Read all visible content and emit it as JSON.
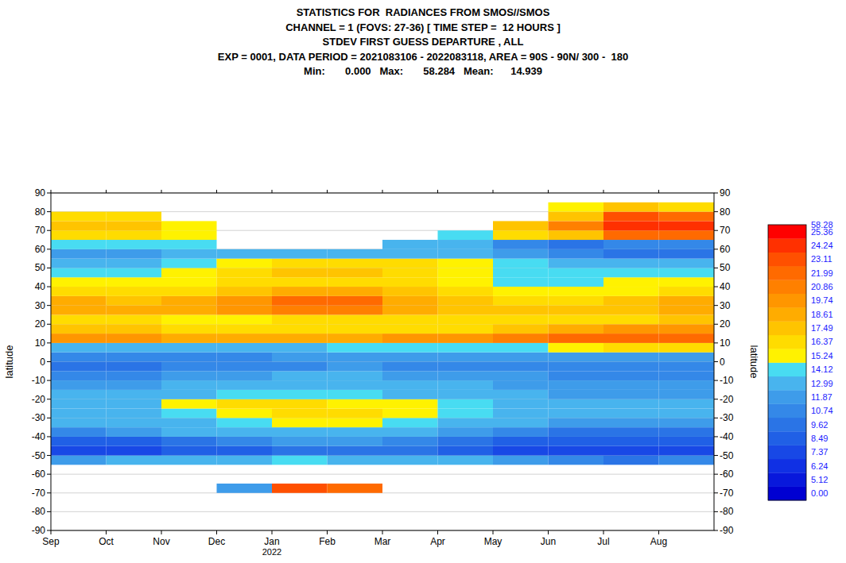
{
  "chart_data": {
    "type": "heatmap",
    "title": "STATISTICS FOR  RADIANCES FROM SMOS//SMOS",
    "subtitle": [
      "CHANNEL = 1 (FOVS: 27-36) [ TIME STEP =  12 HOURS ]",
      "STDEV FIRST GUESS DEPARTURE , ALL",
      "EXP = 0001, DATA PERIOD = 2021083106 - 2022083118, AREA = 90S - 90N/ 300 -  180",
      "Min:       0.000   Max:       58.284   Mean:      14.939"
    ],
    "ylabel": "latitude",
    "xlim": [
      "2021-09",
      "2022-09"
    ],
    "xticks": [
      {
        "value": "2021-09",
        "label": "Sep"
      },
      {
        "value": "2021-10",
        "label": "Oct"
      },
      {
        "value": "2021-11",
        "label": "Nov"
      },
      {
        "value": "2021-12",
        "label": "Dec"
      },
      {
        "value": "2022-01",
        "label": "Jan"
      },
      {
        "value": "2022-02",
        "label": "Feb"
      },
      {
        "value": "2022-03",
        "label": "Mar"
      },
      {
        "value": "2022-04",
        "label": "Apr"
      },
      {
        "value": "2022-05",
        "label": "May"
      },
      {
        "value": "2022-06",
        "label": "Jun"
      },
      {
        "value": "2022-07",
        "label": "Jul"
      },
      {
        "value": "2022-08",
        "label": "Aug"
      }
    ],
    "year_labels": [
      {
        "value": "2022-01",
        "label": "2022"
      }
    ],
    "ylim": [
      -90,
      90
    ],
    "yticks": [
      -90,
      -80,
      -70,
      -60,
      -50,
      -40,
      -30,
      -20,
      -10,
      0,
      10,
      20,
      30,
      40,
      50,
      60,
      70,
      80,
      90
    ],
    "grid": true,
    "x": [
      "2021-09",
      "2021-10",
      "2021-11",
      "2021-12",
      "2022-01",
      "2022-02",
      "2022-03",
      "2022-04",
      "2022-05",
      "2022-06",
      "2022-07",
      "2022-08"
    ],
    "y_edges": [
      -70,
      -65,
      -60,
      -55,
      -50,
      -45,
      -40,
      -35,
      -30,
      -25,
      -20,
      -15,
      -10,
      -5,
      0,
      5,
      10,
      15,
      20,
      25,
      30,
      35,
      40,
      45,
      50,
      55,
      60,
      65,
      70,
      75,
      80,
      85
    ],
    "cells": [
      [
        null,
        null,
        null,
        12,
        24,
        23,
        null,
        null,
        null,
        null,
        null,
        null
      ],
      [
        null,
        null,
        null,
        null,
        null,
        null,
        null,
        null,
        null,
        null,
        null,
        null
      ],
      [
        null,
        null,
        null,
        null,
        null,
        null,
        null,
        null,
        null,
        null,
        null,
        null
      ],
      [
        12,
        13,
        13,
        14,
        15,
        14,
        14,
        13,
        12,
        11,
        10,
        11
      ],
      [
        8,
        8,
        9,
        9,
        10,
        10,
        10,
        9,
        8,
        8,
        8,
        8
      ],
      [
        9,
        9,
        10,
        11,
        12,
        12,
        11,
        10,
        9,
        9,
        9,
        9
      ],
      [
        11,
        12,
        13,
        13,
        14,
        14,
        13,
        12,
        11,
        10,
        10,
        10
      ],
      [
        13,
        13,
        14,
        15,
        16,
        16,
        15,
        14,
        13,
        12,
        12,
        12
      ],
      [
        14,
        14,
        15,
        16,
        17,
        17,
        16,
        15,
        14,
        13,
        13,
        13
      ],
      [
        14,
        14,
        16,
        17,
        17,
        16,
        16,
        15,
        14,
        13,
        13,
        13
      ],
      [
        13,
        13,
        14,
        15,
        15,
        15,
        14,
        14,
        13,
        12,
        12,
        12
      ],
      [
        12,
        12,
        13,
        13,
        14,
        14,
        13,
        13,
        12,
        12,
        12,
        12
      ],
      [
        11,
        11,
        12,
        12,
        13,
        13,
        12,
        12,
        12,
        11,
        11,
        11
      ],
      [
        10,
        10,
        11,
        11,
        11,
        12,
        11,
        11,
        11,
        11,
        11,
        11
      ],
      [
        11,
        11,
        11,
        11,
        12,
        12,
        12,
        12,
        12,
        12,
        12,
        12
      ],
      [
        14,
        14,
        14,
        14,
        14,
        15,
        15,
        15,
        15,
        16,
        17,
        17
      ],
      [
        20,
        20,
        19,
        19,
        19,
        19,
        20,
        20,
        21,
        22,
        23,
        23
      ],
      [
        18,
        18,
        17,
        17,
        17,
        17,
        17,
        17,
        18,
        19,
        20,
        20
      ],
      [
        17,
        17,
        16,
        16,
        17,
        17,
        17,
        17,
        17,
        17,
        17,
        18
      ],
      [
        19,
        19,
        19,
        20,
        21,
        21,
        19,
        18,
        18,
        18,
        18,
        19
      ],
      [
        19,
        18,
        19,
        20,
        23,
        22,
        19,
        18,
        17,
        17,
        18,
        19
      ],
      [
        17,
        17,
        17,
        18,
        19,
        19,
        18,
        17,
        16,
        16,
        16,
        17
      ],
      [
        16,
        16,
        16,
        17,
        17,
        17,
        17,
        16,
        15,
        15,
        16,
        16
      ],
      [
        15,
        15,
        16,
        17,
        18,
        18,
        17,
        16,
        15,
        15,
        15,
        15
      ],
      [
        14,
        14,
        15,
        16,
        17,
        17,
        17,
        16,
        15,
        14,
        14,
        14
      ],
      [
        12,
        12,
        13,
        13,
        14,
        14,
        14,
        13,
        12,
        11,
        10,
        10
      ],
      [
        15,
        15,
        15,
        null,
        null,
        null,
        13,
        13,
        11,
        10,
        11,
        11
      ],
      [
        17,
        17,
        16,
        null,
        null,
        null,
        null,
        15,
        17,
        18,
        23,
        23
      ],
      [
        18,
        18,
        16,
        null,
        null,
        null,
        null,
        null,
        18,
        21,
        25,
        25
      ],
      [
        17,
        17,
        null,
        null,
        null,
        null,
        null,
        null,
        null,
        18,
        24,
        23
      ],
      [
        null,
        null,
        null,
        null,
        null,
        null,
        null,
        null,
        null,
        16,
        18,
        17
      ]
    ],
    "colorbar": {
      "levels": [
        {
          "value": 0,
          "label": "0.00"
        },
        5.12,
        6.24,
        7.37,
        8.49,
        9.62,
        10.74,
        11.87,
        12.99,
        14.12,
        15.24,
        16.37,
        17.49,
        18.61,
        19.74,
        20.86,
        21.99,
        23.11,
        24.24,
        25.36,
        58.28
      ],
      "colors": [
        "#0000d2",
        "#0818dc",
        "#1030e4",
        "#1848e6",
        "#2060e6",
        "#2a74e6",
        "#3488e8",
        "#3e9cea",
        "#48b4ee",
        "#48dcf2",
        "#fff200",
        "#ffdc00",
        "#ffc400",
        "#ffac00",
        "#ff9600",
        "#ff8000",
        "#ff6a00",
        "#ff5000",
        "#ff3000",
        "#ff0000"
      ]
    }
  }
}
